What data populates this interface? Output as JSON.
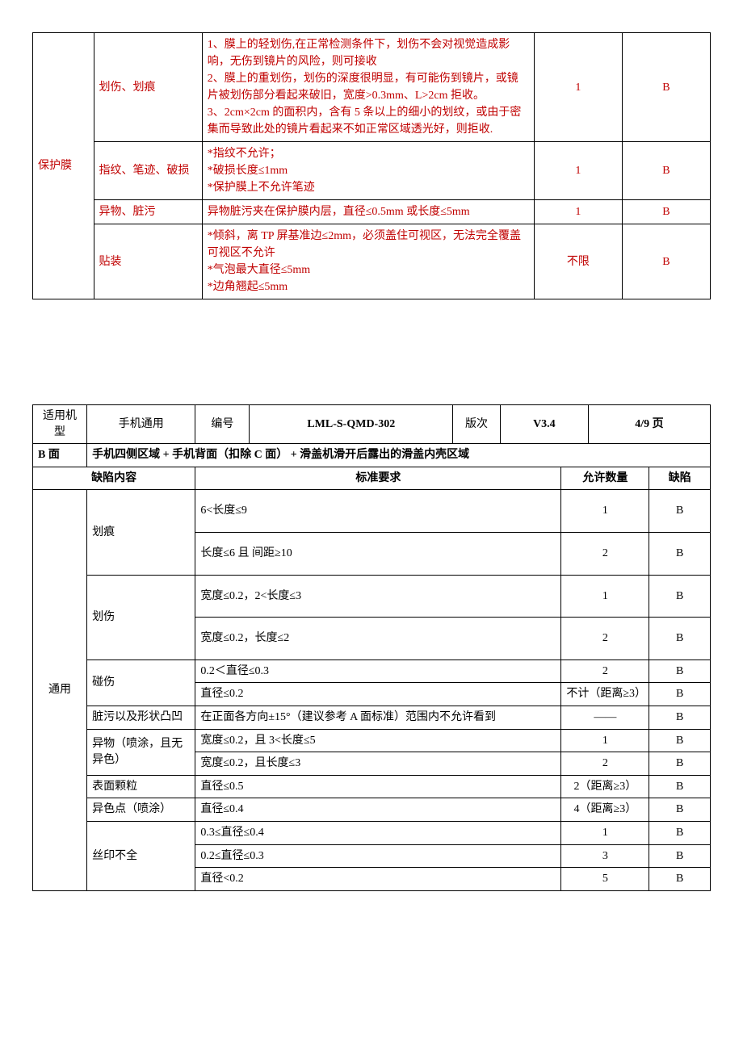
{
  "table1": {
    "groupLabel": "保护膜",
    "rows": [
      {
        "defect": "划伤、划痕",
        "std": "1、膜上的轻划伤,在正常检测条件下，划伤不会对视觉造成影响，无伤到镜片的风险，则可接收\n2、膜上的重划伤，划伤的深度很明显，有可能伤到镜片，或镜片被划伤部分看起来破旧，宽度>0.3mm、L>2cm 拒收。\n3、2cm×2cm 的面积内，含有 5 条以上的细小的划纹，或由于密集而导致此处的镜片看起来不如正常区域透光好，则拒收.",
        "qty": "1",
        "grade": "B"
      },
      {
        "defect": "指纹、笔迹、破损",
        "std": "*指纹不允许；\n*破损长度≤1mm\n*保护膜上不允许笔迹",
        "qty": "1",
        "grade": "B"
      },
      {
        "defect": "异物、脏污",
        "std": "异物脏污夹在保护膜内层，直径≤0.5mm 或长度≤5mm",
        "qty": "1",
        "grade": "B"
      },
      {
        "defect": "贴装",
        "std": "*倾斜，离 TP 屏基准边≤2mm，必须盖住可视区，无法完全覆盖可视区不允许\n*气泡最大直径≤5mm\n*边角翘起≤5mm",
        "qty": "不限",
        "grade": "B"
      }
    ]
  },
  "header2": {
    "modelLabel": "适用机型",
    "model": "手机通用",
    "codeLabel": "编号",
    "code": "LML-S-QMD-302",
    "verLabel": "版次",
    "ver": "V3.4",
    "page": "4/9 页"
  },
  "bface": {
    "label": "B 面",
    "desc": "手机四侧区域 + 手机背面（扣除 C 面）  + 滑盖机滑开后露出的滑盖内壳区域"
  },
  "colHeaders": {
    "defect": "缺陷内容",
    "std": "标准要求",
    "qty": "允许数量",
    "grade": "缺陷"
  },
  "table2": {
    "groupLabel": "通用",
    "groups": [
      {
        "defect": "划痕",
        "rows": [
          {
            "std": "6<长度≤9",
            "qty": "1",
            "grade": "B"
          },
          {
            "std": "长度≤6 且 间距≥10",
            "qty": "2",
            "grade": "B"
          }
        ]
      },
      {
        "defect": "划伤",
        "rows": [
          {
            "std": "宽度≤0.2，2<长度≤3",
            "qty": "1",
            "grade": "B"
          },
          {
            "std": "宽度≤0.2，长度≤2",
            "qty": "2",
            "grade": "B"
          }
        ]
      },
      {
        "defect": "碰伤",
        "rows": [
          {
            "std": "0.2＜直径≤0.3",
            "qty": "2",
            "grade": "B"
          },
          {
            "std": "直径≤0.2",
            "qty": "不计（距离≥3）",
            "grade": "B"
          }
        ]
      },
      {
        "defect": "脏污以及形状凸凹",
        "rows": [
          {
            "std": "在正面各方向±15°（建议参考 A 面标准）范围内不允许看到",
            "qty": "——",
            "grade": "B"
          }
        ]
      },
      {
        "defect": "异物（喷涂，且无异色）",
        "rows": [
          {
            "std": "宽度≤0.2，且 3<长度≤5",
            "qty": "1",
            "grade": "B"
          },
          {
            "std": "宽度≤0.2，且长度≤3",
            "qty": "2",
            "grade": "B"
          }
        ]
      },
      {
        "defect": "表面颗粒",
        "rows": [
          {
            "std": "直径≤0.5",
            "qty": "2（距离≥3）",
            "grade": "B"
          }
        ]
      },
      {
        "defect": "异色点（喷涂）",
        "rows": [
          {
            "std": "直径≤0.4",
            "qty": "4（距离≥3）",
            "grade": "B"
          }
        ]
      },
      {
        "defect": "丝印不全",
        "rows": [
          {
            "std": "0.3≤直径≤0.4",
            "qty": "1",
            "grade": "B"
          },
          {
            "std": "0.2≤直径≤0.3",
            "qty": "3",
            "grade": "B"
          },
          {
            "std": "直径<0.2",
            "qty": "5",
            "grade": "B"
          }
        ]
      }
    ]
  }
}
